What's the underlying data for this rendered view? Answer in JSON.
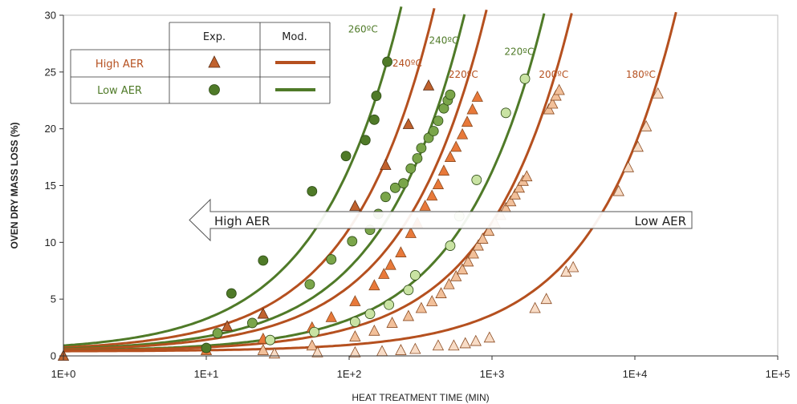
{
  "chart_data": {
    "type": "scatter",
    "xlabel": "HEAT TREATMENT TIME (MIN)",
    "ylabel": "OVEN DRY MASS LOSS (%)",
    "x_scale": "log",
    "xlim": [
      1,
      100000
    ],
    "ylim": [
      0,
      30
    ],
    "x_tick_labels": [
      "1E+0",
      "1E+1",
      "1E+2",
      "1E+3",
      "1E+4",
      "1E+5"
    ],
    "x_tick_values": [
      1,
      10,
      100,
      1000,
      10000,
      100000
    ],
    "y_ticks": [
      0,
      5,
      10,
      15,
      20,
      25,
      30
    ],
    "grid": false,
    "colors": {
      "high_aer": "#b5501f",
      "low_aer": "#4f7a28",
      "high_fill_dark": "#c0622e",
      "high_fill_mid": "#e8793a",
      "high_fill_light": "#f2c09a",
      "high_fill_pale": "#f8dcc6",
      "low_fill_dark": "#4f7a28",
      "low_fill_mid": "#7aa54a",
      "low_fill_light": "#c9e3a3"
    },
    "legend": {
      "col_exp": "Exp.",
      "col_mod": "Mod.",
      "rows": [
        {
          "label": "High AER",
          "color": "#b5501f",
          "marker": "triangle"
        },
        {
          "label": "Low AER",
          "color": "#4f7a28",
          "marker": "circle"
        }
      ]
    },
    "arrow": {
      "left_label": "High AER",
      "right_label": "Low AER",
      "y": 12
    },
    "model_curves": [
      {
        "group": "low",
        "label": "260ºC",
        "ref_x": 180,
        "ref_y": 25.5,
        "label_x": 125,
        "label_y": 28.5
      },
      {
        "group": "high",
        "label": "240ºC",
        "ref_x": 300,
        "ref_y": 25,
        "label_x": 255,
        "label_y": 25.5
      },
      {
        "group": "low",
        "label": "240ºC",
        "ref_x": 500,
        "ref_y": 25,
        "label_x": 460,
        "label_y": 27.5
      },
      {
        "group": "high",
        "label": "220ºC",
        "ref_x": 700,
        "ref_y": 25,
        "label_x": 630,
        "label_y": 24.5
      },
      {
        "group": "low",
        "label": "220ºC",
        "ref_x": 1800,
        "ref_y": 25,
        "label_x": 1550,
        "label_y": 26.5
      },
      {
        "group": "high",
        "label": "200ºC",
        "ref_x": 2800,
        "ref_y": 25,
        "label_x": 2700,
        "label_y": 24.5
      },
      {
        "group": "high",
        "label": "180ºC",
        "ref_x": 15000,
        "ref_y": 25,
        "label_x": 11000,
        "label_y": 24.5
      }
    ],
    "series": [
      {
        "name": "High AER",
        "marker": "triangle",
        "fill": "#c0622e",
        "points": [
          [
            1,
            0
          ],
          [
            14,
            2.6
          ],
          [
            25,
            3.7
          ],
          [
            110,
            13.2
          ],
          [
            180,
            16.8
          ],
          [
            260,
            20.4
          ],
          [
            360,
            23.8
          ]
        ]
      },
      {
        "name": "High AER",
        "marker": "triangle",
        "fill": "#e8793a",
        "points": [
          [
            10,
            0.5
          ],
          [
            25,
            1.5
          ],
          [
            55,
            2.5
          ],
          [
            75,
            3.4
          ],
          [
            110,
            4.8
          ],
          [
            150,
            6.2
          ],
          [
            175,
            7.2
          ],
          [
            195,
            8
          ],
          [
            230,
            9.1
          ],
          [
            270,
            10.8
          ],
          [
            300,
            11.7
          ],
          [
            340,
            13.2
          ],
          [
            380,
            14.1
          ],
          [
            420,
            15.1
          ],
          [
            460,
            16.3
          ],
          [
            510,
            17.5
          ],
          [
            560,
            18.4
          ],
          [
            620,
            19.5
          ],
          [
            670,
            20.6
          ],
          [
            730,
            21.7
          ],
          [
            790,
            22.8
          ]
        ]
      },
      {
        "name": "High AER",
        "marker": "triangle",
        "fill": "#f2c09a",
        "points": [
          [
            25,
            0.5
          ],
          [
            55,
            0.9
          ],
          [
            110,
            1.7
          ],
          [
            150,
            2.2
          ],
          [
            200,
            2.9
          ],
          [
            260,
            3.5
          ],
          [
            320,
            4.2
          ],
          [
            380,
            4.8
          ],
          [
            440,
            5.5
          ],
          [
            500,
            6.3
          ],
          [
            560,
            7
          ],
          [
            620,
            7.6
          ],
          [
            680,
            8.3
          ],
          [
            740,
            9
          ],
          [
            800,
            9.7
          ],
          [
            860,
            10.3
          ],
          [
            950,
            11
          ],
          [
            1050,
            11.7
          ],
          [
            1150,
            12.4
          ],
          [
            1250,
            13
          ],
          [
            1350,
            13.6
          ],
          [
            1450,
            14.2
          ],
          [
            1550,
            14.8
          ],
          [
            1650,
            15.4
          ],
          [
            1750,
            15.8
          ],
          [
            2500,
            21.7
          ],
          [
            2650,
            22.2
          ],
          [
            2800,
            22.9
          ],
          [
            2950,
            23.4
          ]
        ]
      },
      {
        "name": "High AER",
        "marker": "triangle",
        "fill": "#f8dcc6",
        "points": [
          [
            30,
            0.2
          ],
          [
            60,
            0.3
          ],
          [
            110,
            0.3
          ],
          [
            170,
            0.4
          ],
          [
            230,
            0.5
          ],
          [
            290,
            0.6
          ],
          [
            420,
            0.9
          ],
          [
            540,
            0.9
          ],
          [
            650,
            1.1
          ],
          [
            770,
            1.3
          ],
          [
            960,
            1.6
          ],
          [
            2000,
            4.2
          ],
          [
            2400,
            5
          ],
          [
            3300,
            7.4
          ],
          [
            3700,
            7.8
          ],
          [
            7700,
            14.5
          ],
          [
            9000,
            16.6
          ],
          [
            10500,
            18.4
          ],
          [
            12000,
            20.2
          ],
          [
            14500,
            23.1
          ]
        ]
      },
      {
        "name": "Low AER",
        "marker": "circle",
        "fill": "#4f7a28",
        "points": [
          [
            10,
            0.7
          ],
          [
            15,
            5.5
          ],
          [
            25,
            8.4
          ],
          [
            55,
            14.5
          ],
          [
            95,
            17.6
          ],
          [
            130,
            19
          ],
          [
            155,
            22.9
          ],
          [
            150,
            20.8
          ],
          [
            185,
            25.9
          ]
        ]
      },
      {
        "name": "Low AER",
        "marker": "circle",
        "fill": "#7aa54a",
        "points": [
          [
            12,
            2
          ],
          [
            21,
            2.9
          ],
          [
            53,
            6.3
          ],
          [
            75,
            8.5
          ],
          [
            105,
            10.1
          ],
          [
            140,
            11.1
          ],
          [
            160,
            12.5
          ],
          [
            180,
            14
          ],
          [
            210,
            14.8
          ],
          [
            240,
            15.2
          ],
          [
            270,
            16.5
          ],
          [
            300,
            17.4
          ],
          [
            320,
            18.3
          ],
          [
            360,
            19.2
          ],
          [
            390,
            19.8
          ],
          [
            420,
            20.7
          ],
          [
            460,
            21.8
          ],
          [
            490,
            22.5
          ],
          [
            510,
            23
          ]
        ]
      },
      {
        "name": "Low AER",
        "marker": "circle",
        "fill": "#c9e3a3",
        "points": [
          [
            28,
            1.4
          ],
          [
            57,
            2.1
          ],
          [
            110,
            3
          ],
          [
            140,
            3.7
          ],
          [
            190,
            4.5
          ],
          [
            260,
            5.8
          ],
          [
            290,
            7.1
          ],
          [
            510,
            9.7
          ],
          [
            590,
            12.3
          ],
          [
            780,
            15.5
          ],
          [
            1250,
            21.4
          ],
          [
            1700,
            24.4
          ]
        ]
      }
    ]
  }
}
